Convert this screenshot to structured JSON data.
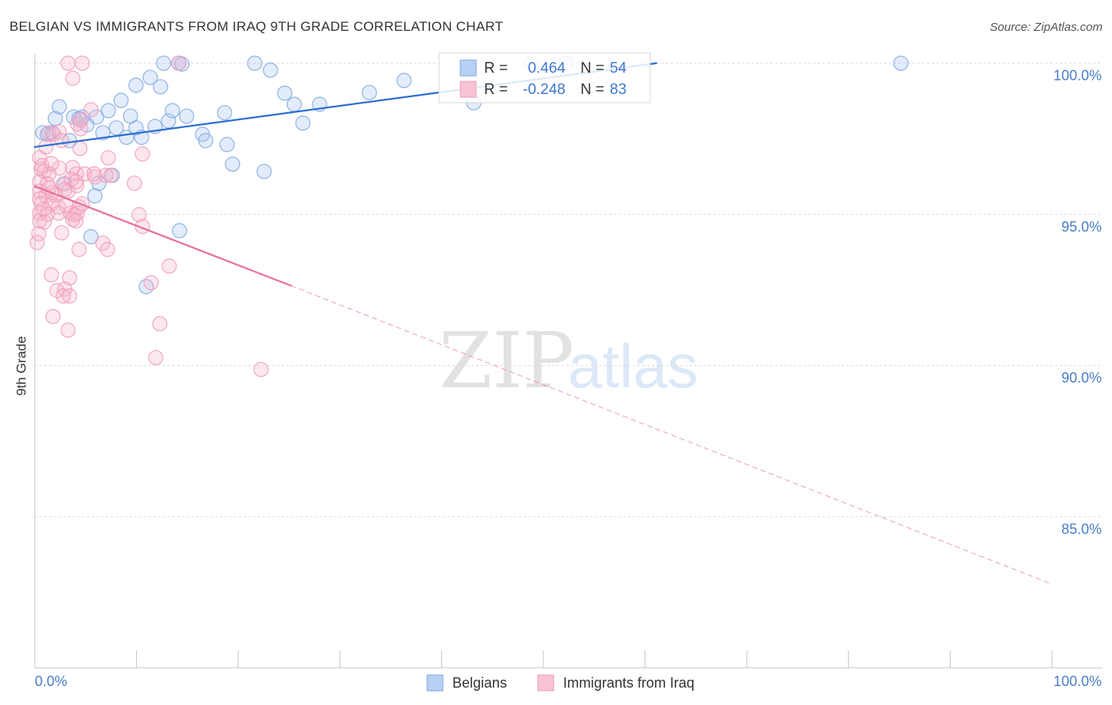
{
  "source": "Source: ZipAtlas.com",
  "watermark": {
    "zip": "ZIP",
    "atlas": "atlas"
  },
  "chart_data": {
    "type": "scatter",
    "title": "BELGIAN VS IMMIGRANTS FROM IRAQ 9TH GRADE CORRELATION CHART",
    "xlabel": "",
    "ylabel": "9th Grade",
    "xlim": [
      0,
      100
    ],
    "ylim": [
      80,
      100.3
    ],
    "grid": true,
    "legend_position": "top-center",
    "x_ticks": [
      {
        "value": 0,
        "label": "0.0%"
      },
      {
        "value": 100,
        "label": "100.0%"
      }
    ],
    "x_minor_ticks": [
      0,
      10,
      20,
      30,
      40,
      50,
      60,
      70,
      80,
      90,
      100
    ],
    "y_ticks": [
      {
        "value": 100,
        "label": "100.0%"
      },
      {
        "value": 95,
        "label": "95.0%"
      },
      {
        "value": 90,
        "label": "90.0%"
      },
      {
        "value": 85,
        "label": "85.0%"
      }
    ],
    "series": [
      {
        "name": "Belgians",
        "r_label": "R =",
        "r": "0.464",
        "n_label": "N =",
        "n": "54",
        "stroke": "#7ea7e0",
        "fill": "#a8c3ee",
        "swatch_fill": "#b8d0f3",
        "swatch_stroke": "#7ea7e0",
        "trend_color": "#2c6fd1",
        "trend": [
          {
            "style": "solid",
            "from": [
              0,
              97.23
            ],
            "to": [
              61.1,
              100.0
            ]
          }
        ],
        "points": [
          [
            0.78,
            97.7
          ],
          [
            1.71,
            97.7
          ],
          [
            1.24,
            97.65
          ],
          [
            2.02,
            98.17
          ],
          [
            2.41,
            98.56
          ],
          [
            2.95,
            96.01
          ],
          [
            3.42,
            97.44
          ],
          [
            3.81,
            98.22
          ],
          [
            4.35,
            98.17
          ],
          [
            4.67,
            98.22
          ],
          [
            5.13,
            97.96
          ],
          [
            5.52,
            94.26
          ],
          [
            5.91,
            95.61
          ],
          [
            6.07,
            98.22
          ],
          [
            6.3,
            96.03
          ],
          [
            6.69,
            97.7
          ],
          [
            7.23,
            98.43
          ],
          [
            7.62,
            96.29
          ],
          [
            8.01,
            97.86
          ],
          [
            8.48,
            98.77
          ],
          [
            9.02,
            97.55
          ],
          [
            9.41,
            98.25
          ],
          [
            9.95,
            99.27
          ],
          [
            9.95,
            97.86
          ],
          [
            10.5,
            97.55
          ],
          [
            10.96,
            92.61
          ],
          [
            11.35,
            99.53
          ],
          [
            11.82,
            97.91
          ],
          [
            12.36,
            99.22
          ],
          [
            12.67,
            100.0
          ],
          [
            13.14,
            98.09
          ],
          [
            13.53,
            98.43
          ],
          [
            14.15,
            100.0
          ],
          [
            14.46,
            99.97
          ],
          [
            14.23,
            94.46
          ],
          [
            14.93,
            98.25
          ],
          [
            16.49,
            97.65
          ],
          [
            16.8,
            97.44
          ],
          [
            18.66,
            98.36
          ],
          [
            18.9,
            97.31
          ],
          [
            19.44,
            96.66
          ],
          [
            21.62,
            100.0
          ],
          [
            22.55,
            96.42
          ],
          [
            23.17,
            99.77
          ],
          [
            24.57,
            99.01
          ],
          [
            25.51,
            98.64
          ],
          [
            26.36,
            98.02
          ],
          [
            28.0,
            98.64
          ],
          [
            32.89,
            99.03
          ],
          [
            36.31,
            99.43
          ],
          [
            43.16,
            98.69
          ],
          [
            48.83,
            100.0
          ],
          [
            52.26,
            100.0
          ],
          [
            85.15,
            100.0
          ]
        ]
      },
      {
        "name": "Immigrants from Iraq",
        "r_label": "R =",
        "r": "-0.248",
        "n_label": "N =",
        "n": "83",
        "stroke": "#f09ab8",
        "fill": "#f6b3c9",
        "swatch_fill": "#f8c3d4",
        "swatch_stroke": "#ee9fbb",
        "trend_color": "#e8709a",
        "trend": [
          {
            "style": "solid",
            "from": [
              0,
              95.93
            ],
            "to": [
              25.2,
              92.64
            ]
          },
          {
            "style": "dashed",
            "from": [
              25.2,
              92.64
            ],
            "to": [
              100,
              82.77
            ]
          }
        ],
        "points": [
          [
            3.27,
            100.0
          ],
          [
            4.67,
            100.0
          ],
          [
            3.73,
            99.5
          ],
          [
            5.52,
            98.46
          ],
          [
            4.2,
            97.99
          ],
          [
            4.51,
            97.83
          ],
          [
            1.4,
            97.7
          ],
          [
            1.87,
            97.65
          ],
          [
            2.41,
            97.73
          ],
          [
            2.64,
            97.44
          ],
          [
            4.43,
            97.18
          ],
          [
            10.58,
            97.0
          ],
          [
            7.23,
            96.87
          ],
          [
            0.47,
            96.87
          ],
          [
            0.62,
            96.5
          ],
          [
            0.93,
            96.42
          ],
          [
            1.4,
            96.34
          ],
          [
            2.41,
            96.53
          ],
          [
            3.73,
            96.55
          ],
          [
            4.09,
            96.34
          ],
          [
            4.9,
            96.34
          ],
          [
            5.83,
            96.34
          ],
          [
            6.99,
            96.29
          ],
          [
            9.8,
            96.03
          ],
          [
            0.47,
            96.08
          ],
          [
            1.24,
            96.01
          ],
          [
            2.8,
            96.01
          ],
          [
            4.12,
            95.95
          ],
          [
            0.47,
            95.77
          ],
          [
            1.09,
            95.61
          ],
          [
            2.02,
            95.64
          ],
          [
            3.27,
            95.77
          ],
          [
            0.62,
            95.35
          ],
          [
            1.63,
            95.35
          ],
          [
            2.33,
            95.25
          ],
          [
            4.35,
            95.25
          ],
          [
            0.47,
            95.04
          ],
          [
            1.24,
            95.01
          ],
          [
            2.33,
            95.04
          ],
          [
            3.5,
            95.04
          ],
          [
            3.89,
            94.99
          ],
          [
            4.2,
            95.04
          ],
          [
            10.26,
            94.99
          ],
          [
            0.47,
            94.78
          ],
          [
            0.93,
            94.75
          ],
          [
            3.73,
            94.83
          ],
          [
            4.04,
            94.78
          ],
          [
            10.58,
            94.6
          ],
          [
            0.39,
            94.36
          ],
          [
            2.64,
            94.39
          ],
          [
            0.23,
            94.07
          ],
          [
            6.69,
            94.05
          ],
          [
            7.15,
            93.84
          ],
          [
            4.35,
            93.84
          ],
          [
            13.22,
            93.29
          ],
          [
            1.63,
            93.0
          ],
          [
            3.42,
            92.9
          ],
          [
            11.43,
            92.74
          ],
          [
            2.18,
            92.48
          ],
          [
            2.95,
            92.53
          ],
          [
            3.42,
            92.3
          ],
          [
            2.8,
            92.3
          ],
          [
            1.79,
            91.62
          ],
          [
            12.29,
            91.38
          ],
          [
            3.27,
            91.17
          ],
          [
            11.9,
            90.26
          ],
          [
            22.24,
            89.87
          ],
          [
            14.15,
            100.0
          ],
          [
            4.51,
            98.12
          ],
          [
            0.7,
            96.61
          ],
          [
            1.63,
            96.68
          ],
          [
            3.58,
            96.16
          ],
          [
            5.91,
            96.24
          ],
          [
            3.11,
            95.3
          ],
          [
            0.86,
            95.17
          ],
          [
            4.67,
            95.35
          ],
          [
            1.71,
            95.72
          ],
          [
            0.47,
            95.51
          ],
          [
            4.04,
            96.08
          ],
          [
            7.47,
            96.29
          ],
          [
            1.09,
            97.23
          ],
          [
            2.95,
            95.82
          ],
          [
            1.4,
            95.87
          ]
        ]
      }
    ]
  }
}
